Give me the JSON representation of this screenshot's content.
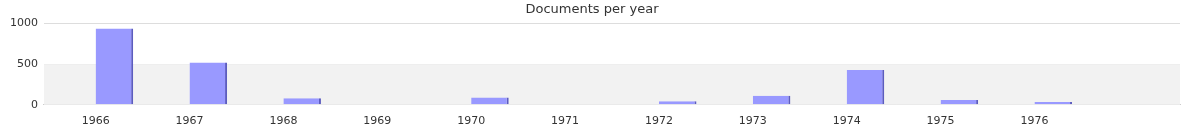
{
  "chart_data": {
    "type": "bar",
    "title": "Documents per year",
    "x": [
      1966,
      1967,
      1968,
      1970,
      1972,
      1973,
      1974,
      1975,
      1976
    ],
    "values": [
      940,
      520,
      80,
      90,
      45,
      110,
      430,
      60,
      35
    ],
    "color": "#9999ff",
    "xlim": [
      1966,
      1977
    ],
    "xticks": [
      1966,
      1967,
      1968,
      1969,
      1970,
      1971,
      1972,
      1973,
      1974,
      1975,
      1976
    ],
    "ylim": [
      0,
      1000
    ],
    "yticks": [
      0,
      500,
      1000
    ],
    "grid": true
  }
}
